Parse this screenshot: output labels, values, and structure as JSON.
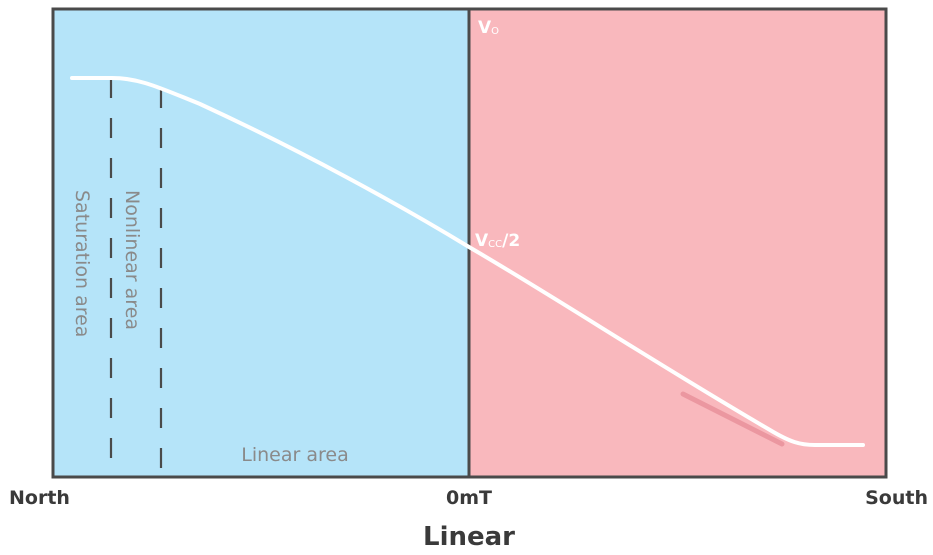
{
  "labels": {
    "vo_main": "V",
    "vo_sub": "O",
    "vcc_main": "V",
    "vcc_sub": "CC",
    "vcc_suffix": "/2",
    "saturation_area": "Saturation area",
    "nonlinear_area": "Nonlinear area",
    "linear_area": "Linear area"
  },
  "axis": {
    "left": "North",
    "center": "0mT",
    "right": "South",
    "title": "Linear"
  },
  "colors": {
    "left_region": "#b5e4f9",
    "right_region": "#f9b8bd",
    "frame": "#4a4a4a",
    "curve": "#ffffff",
    "dashes": "#4a4a4a"
  }
}
